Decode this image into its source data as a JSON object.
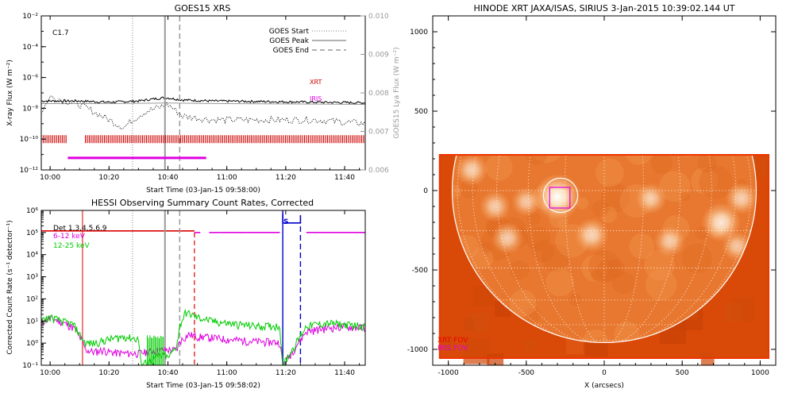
{
  "chart_data": [
    {
      "type": "line",
      "title": "GOES15 XRS",
      "xlabel": "Start Time (03-Jan-15 09:58:00)",
      "ylabel": "X-ray Flux (W m$^{-2}$)",
      "ylabel_text": "X-ray Flux (W m⁻²)",
      "y2label": "GOES15 Lya Flux (W m⁻²)",
      "yscale": "log",
      "ylim": [
        1e-12,
        0.01
      ],
      "y2lim": [
        0.006,
        0.01
      ],
      "xlim_min": [
        -3,
        107
      ],
      "x_tick_labels": [
        "10:00",
        "10:20",
        "10:40",
        "11:00",
        "11:20",
        "11:40"
      ],
      "x_tick_min": [
        0,
        20,
        40,
        60,
        80,
        100
      ],
      "y_tick_labels": [
        "10⁻¹²",
        "10⁻¹⁰",
        "10⁻⁸",
        "10⁻⁶",
        "10⁻⁴",
        "10⁻²"
      ],
      "y2_tick_labels": [
        "0.006",
        "0.007",
        "0.008",
        "0.009",
        "0.010"
      ],
      "annotation": "C1.7",
      "legend": [
        {
          "label": "GOES Start",
          "style": "dotted"
        },
        {
          "label": "GOES Peak",
          "style": "solid"
        },
        {
          "label": "GOES End",
          "style": "dashed"
        }
      ],
      "legend_position": "top-right",
      "vlines_min": {
        "start": 28,
        "peak": 39,
        "end": 44
      },
      "series": [
        {
          "name": "XRT",
          "color": "#cc0000",
          "bars_min": [
            [
              -3,
              6
            ],
            [
              12,
              107
            ]
          ],
          "value": 1e-10
        },
        {
          "name": "IRIS",
          "color": "#e000e0",
          "bars_min": [
            [
              6,
              53
            ]
          ],
          "value": 6e-12
        }
      ],
      "curves": {
        "long_channel": {
          "x": [
            -3,
            10,
            20,
            30,
            35,
            39,
            45,
            55,
            70,
            90,
            107
          ],
          "y": [
            3e-08,
            3e-08,
            2.5e-08,
            3e-08,
            4e-08,
            5e-08,
            3.5e-08,
            3e-08,
            2.8e-08,
            2.5e-08,
            2.3e-08
          ]
        },
        "long_channel_grey": {
          "x": [
            -3,
            20,
            40,
            60,
            107
          ],
          "y": [
            2e-08,
            2e-08,
            2.2e-08,
            2e-08,
            1.8e-08
          ]
        },
        "lya": {
          "x": [
            -3,
            0,
            10,
            20,
            25,
            28,
            32,
            36,
            40,
            45,
            55,
            70,
            90,
            107
          ],
          "y": [
            0.0075,
            0.0079,
            0.0077,
            0.0073,
            0.0071,
            0.0073,
            0.0075,
            0.0076,
            0.0077,
            0.0074,
            0.0073,
            0.0073,
            0.0073,
            0.0072
          ]
        }
      },
      "colors": {
        "black": "#000000",
        "grey": "#999999"
      }
    },
    {
      "type": "line",
      "title": "HESSI Observing Summary Count Rates, Corrected",
      "xlabel": "Start Time (03-Jan-15 09:58:02)",
      "ylabel": "Corrected Count Rate (s⁻¹ detector⁻¹)",
      "yscale": "log",
      "ylim": [
        0.1,
        1000000
      ],
      "xlim_min": [
        -3,
        107
      ],
      "x_tick_labels": [
        "10:00",
        "10:20",
        "10:40",
        "11:00",
        "11:20",
        "11:40"
      ],
      "x_tick_min": [
        0,
        20,
        40,
        60,
        80,
        100
      ],
      "y_tick_labels": [
        "10⁻¹",
        "10⁰",
        "10¹",
        "10²",
        "10³",
        "10⁴",
        "10⁵",
        "10⁶"
      ],
      "det_label": "Det 1,3,4,5,6,9",
      "s_label": "S",
      "legend": [
        {
          "label": "6-12 keV",
          "color": "#e000e0"
        },
        {
          "label": "12-25 keV",
          "color": "#00cc00"
        }
      ],
      "legend_position": "top-left",
      "vlines_min": {
        "start": 28,
        "peak": 39,
        "end": 44,
        "red_solid": 11,
        "red_dashed": 49,
        "blue_solid": 79,
        "blue_dashed": 85
      },
      "flag_segments_min": {
        "red": [
          [
            -3,
            49
          ]
        ],
        "magenta": [
          [
            49,
            51
          ],
          [
            54,
            58
          ],
          [
            58,
            67
          ],
          [
            67,
            78
          ],
          [
            87,
            107
          ]
        ],
        "blue": [
          [
            79,
            85
          ]
        ]
      },
      "series": [
        {
          "name": "6-12 keV",
          "color": "#e000e0",
          "x": [
            -3,
            0,
            4,
            8,
            11,
            12,
            15,
            18,
            20,
            25,
            30,
            35,
            39,
            40,
            43,
            44,
            47,
            50,
            55,
            60,
            70,
            78,
            79,
            87,
            90,
            95,
            100,
            107
          ],
          "y": [
            9,
            14,
            9,
            5,
            1.2,
            0.5,
            0.4,
            0.5,
            0.4,
            0.35,
            0.35,
            0.45,
            0.5,
            0.5,
            0.5,
            1.2,
            2.5,
            2,
            1.8,
            1.5,
            1.2,
            1.1,
            0.1,
            3.5,
            4,
            5,
            5.5,
            5
          ]
        },
        {
          "name": "12-25 keV",
          "color": "#00cc00",
          "x": [
            -3,
            0,
            4,
            8,
            11,
            12,
            15,
            20,
            25,
            30,
            31,
            35,
            39,
            40,
            43,
            44,
            46,
            50,
            55,
            60,
            70,
            78,
            79,
            87,
            90,
            95,
            100,
            107
          ],
          "y": [
            10,
            15,
            10,
            7,
            1.5,
            1,
            1,
            1.5,
            2,
            1.5,
            0.1,
            0.2,
            0.3,
            0.2,
            0.8,
            6,
            25,
            15,
            10,
            8,
            6,
            6,
            0.1,
            6,
            7,
            8,
            7,
            6
          ]
        }
      ],
      "colors": {
        "red": "#dd0000",
        "blue": "#0000cc",
        "grey": "#999999"
      }
    },
    {
      "type": "heatmap",
      "title": "HINODE XRT JAXA/ISAS, SIRIUS  3-Jan-2015 10:39:02.144 UT",
      "xlabel": "X (arcsecs)",
      "ylabel": "",
      "xlim": [
        -1100,
        1100
      ],
      "ylim": [
        -1100,
        1100
      ],
      "x_ticks": [
        -1000,
        -500,
        0,
        500,
        1000
      ],
      "y_ticks": [
        -1000,
        -500,
        0,
        500,
        1000
      ],
      "image_extent": {
        "x": [
          -1060,
          1060
        ],
        "y": [
          -1060,
          230
        ]
      },
      "solar_radius": 975,
      "grid_spacing_deg": 15,
      "highlight_circle": {
        "x": -280,
        "y": -30,
        "r": 110
      },
      "fov_box": {
        "x": [
          -350,
          -220
        ],
        "y": [
          -110,
          20
        ]
      },
      "legend": [
        {
          "label": "XRT FOV",
          "color": "#ee0000"
        },
        {
          "label": "IRIS FOV",
          "color": "#e000e0"
        }
      ],
      "legend_position": "bottom-left",
      "bright_regions": [
        {
          "x": -300,
          "y": -40,
          "intensity": 1.0
        },
        {
          "x": -850,
          "y": 130,
          "intensity": 0.5
        },
        {
          "x": -700,
          "y": -100,
          "intensity": 0.45
        },
        {
          "x": -500,
          "y": -70,
          "intensity": 0.4
        },
        {
          "x": 300,
          "y": -50,
          "intensity": 0.45
        },
        {
          "x": 750,
          "y": -200,
          "intensity": 0.75
        },
        {
          "x": 880,
          "y": -50,
          "intensity": 0.5
        },
        {
          "x": -80,
          "y": -280,
          "intensity": 0.55
        },
        {
          "x": -620,
          "y": -300,
          "intensity": 0.5
        },
        {
          "x": 420,
          "y": -320,
          "intensity": 0.45
        },
        {
          "x": 850,
          "y": -350,
          "intensity": 0.4
        }
      ],
      "colors": {
        "disk": "#e87830",
        "outer": "#d94a08",
        "limb": "#ffffff"
      }
    }
  ]
}
